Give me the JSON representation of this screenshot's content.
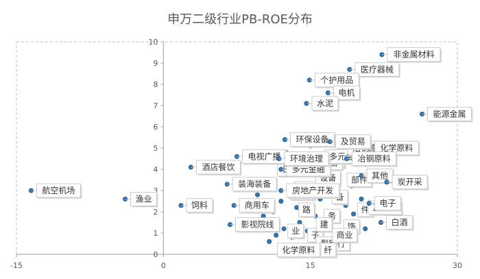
{
  "chart_data": {
    "type": "scatter",
    "title": "申万二级行业PB-ROE分布",
    "xlabel": "",
    "ylabel": "",
    "xlim": [
      -15,
      30
    ],
    "ylim": [
      0,
      10
    ],
    "x_ticks": [
      -15,
      0,
      15,
      30
    ],
    "y_ticks": [
      0,
      1,
      2,
      3,
      4,
      5,
      6,
      7,
      8,
      9,
      10
    ],
    "grid": false,
    "marker_color": "#2e75b6",
    "labeled_points": [
      {
        "label": "非金属材料",
        "x": 22.3,
        "y": 9.4
      },
      {
        "label": "医疗器械",
        "x": 19.0,
        "y": 8.7
      },
      {
        "label": "个护用品",
        "x": 14.9,
        "y": 8.2
      },
      {
        "label": "电机",
        "x": 16.8,
        "y": 7.6
      },
      {
        "label": "水泥",
        "x": 14.6,
        "y": 7.1
      },
      {
        "label": "能源金属",
        "x": 26.4,
        "y": 6.6
      },
      {
        "label": "环保设备",
        "x": 12.4,
        "y": 5.4
      },
      {
        "label": "电视广播",
        "x": 7.5,
        "y": 4.6
      },
      {
        "label": "酒店餐饮",
        "x": 2.8,
        "y": 4.1
      },
      {
        "label": "航空机场",
        "x": -13.5,
        "y": 3.0
      },
      {
        "label": "装海装备",
        "x": 6.5,
        "y": 3.3
      },
      {
        "label": "渔业",
        "x": -3.9,
        "y": 2.6
      },
      {
        "label": "饲料",
        "x": 1.8,
        "y": 2.3
      },
      {
        "label": "商用车",
        "x": 7.2,
        "y": 2.3
      },
      {
        "label": "影视院线",
        "x": 6.8,
        "y": 1.4
      },
      {
        "label": "电子",
        "x": 21.0,
        "y": 2.4
      },
      {
        "label": "白酒",
        "x": 22.2,
        "y": 1.5
      },
      {
        "label": "化学原料",
        "x": 21.0,
        "y": 5.0
      },
      {
        "label": "冶钢原料",
        "x": 18.7,
        "y": 4.5
      },
      {
        "label": "房地产开发",
        "x": 12.0,
        "y": 3.0
      },
      {
        "label": "其他",
        "x": 20.2,
        "y": 3.7
      },
      {
        "label": "炭开采",
        "x": 22.8,
        "y": 3.4
      },
      {
        "label": "多元金融",
        "x": 12.0,
        "y": 4.0
      },
      {
        "label": "环境治理",
        "x": 11.8,
        "y": 4.5
      },
      {
        "label": "及贸易",
        "x": 17.0,
        "y": 5.3
      }
    ],
    "cluster_labels": [
      "服务",
      "地产开发",
      "部件",
      "设备",
      "备",
      "务",
      "件",
      "品",
      "饰",
      "路",
      "业",
      "子",
      "建",
      "型银行",
      "纤",
      "商业",
      "设备",
      "工",
      "及贸易",
      "日用制品",
      "多元金融",
      "冶钢原料",
      "化学原料"
    ],
    "cluster_points": [
      {
        "x": 10.8,
        "y": 0.6
      },
      {
        "x": 11.5,
        "y": 0.9
      },
      {
        "x": 12.3,
        "y": 1.2
      },
      {
        "x": 13.1,
        "y": 0.8
      },
      {
        "x": 13.9,
        "y": 1.5
      },
      {
        "x": 14.7,
        "y": 1.1
      },
      {
        "x": 15.5,
        "y": 1.8
      },
      {
        "x": 16.3,
        "y": 1.3
      },
      {
        "x": 17.1,
        "y": 2.0
      },
      {
        "x": 17.8,
        "y": 1.6
      },
      {
        "x": 18.6,
        "y": 2.3
      },
      {
        "x": 19.4,
        "y": 1.9
      },
      {
        "x": 20.2,
        "y": 2.6
      },
      {
        "x": 11.2,
        "y": 2.0
      },
      {
        "x": 12.0,
        "y": 2.5
      },
      {
        "x": 12.8,
        "y": 3.0
      },
      {
        "x": 13.6,
        "y": 2.2
      },
      {
        "x": 14.4,
        "y": 2.8
      },
      {
        "x": 15.2,
        "y": 3.3
      },
      {
        "x": 16.0,
        "y": 2.6
      },
      {
        "x": 16.8,
        "y": 3.1
      },
      {
        "x": 17.6,
        "y": 3.6
      },
      {
        "x": 18.4,
        "y": 2.9
      },
      {
        "x": 19.2,
        "y": 3.2
      },
      {
        "x": 13.0,
        "y": 3.8
      },
      {
        "x": 14.2,
        "y": 4.1
      },
      {
        "x": 15.4,
        "y": 3.9
      },
      {
        "x": 16.6,
        "y": 4.3
      },
      {
        "x": 17.8,
        "y": 4.0
      },
      {
        "x": 19.5,
        "y": 4.6
      },
      {
        "x": 10.2,
        "y": 1.8
      },
      {
        "x": 9.6,
        "y": 2.8
      },
      {
        "x": 12.5,
        "y": 4.8
      },
      {
        "x": 15.0,
        "y": 5.1
      },
      {
        "x": 18.2,
        "y": 5.0
      },
      {
        "x": 20.6,
        "y": 1.2
      }
    ]
  }
}
